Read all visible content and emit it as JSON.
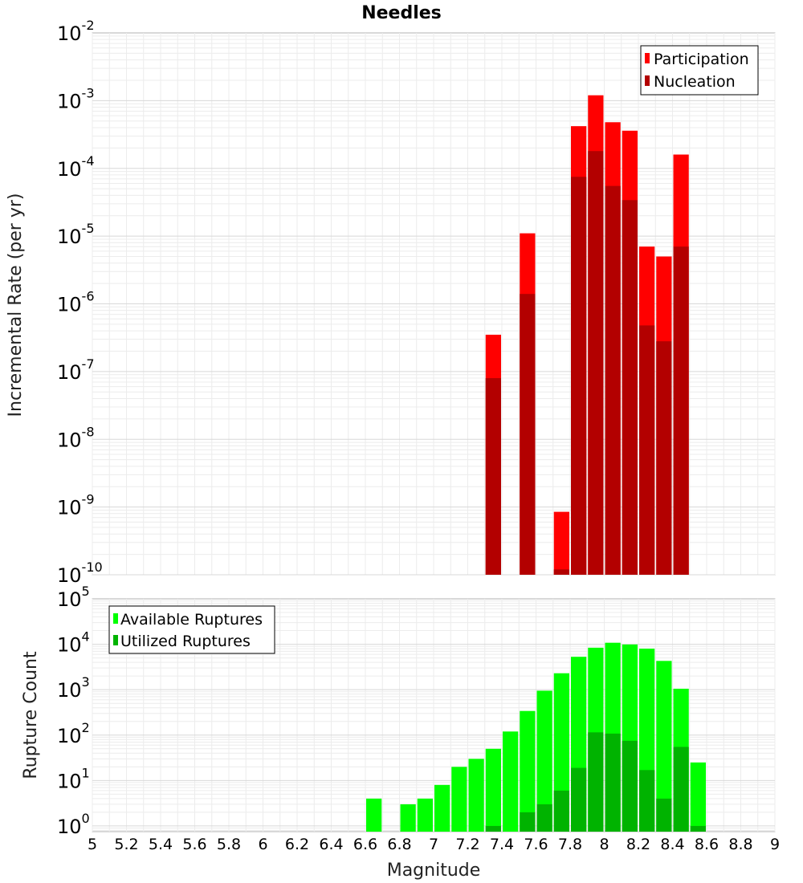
{
  "chart_data": [
    {
      "type": "bar",
      "title": "Needles",
      "ylabel": "Incremental Rate (per yr)",
      "yscale": "log",
      "ylim": [
        1e-10,
        0.01
      ],
      "y_tick_exponents": [
        -10,
        -9,
        -8,
        -7,
        -6,
        -5,
        -4,
        -3,
        -2
      ],
      "legend": {
        "placement": "top-right"
      },
      "bin_width": 0.1,
      "series": [
        {
          "name": "Participation",
          "color": "#ff0000",
          "points": [
            {
              "x": 7.35,
              "y": 3.5e-07
            },
            {
              "x": 7.55,
              "y": 1.1e-05
            },
            {
              "x": 7.75,
              "y": 8.5e-10
            },
            {
              "x": 7.85,
              "y": 0.00042
            },
            {
              "x": 7.95,
              "y": 0.0012
            },
            {
              "x": 8.05,
              "y": 0.00048
            },
            {
              "x": 8.15,
              "y": 0.00036
            },
            {
              "x": 8.25,
              "y": 7e-06
            },
            {
              "x": 8.35,
              "y": 5e-06
            },
            {
              "x": 8.45,
              "y": 0.00016
            }
          ]
        },
        {
          "name": "Nucleation",
          "color": "#b30000",
          "points": [
            {
              "x": 7.35,
              "y": 8e-08
            },
            {
              "x": 7.55,
              "y": 1.4e-06
            },
            {
              "x": 7.75,
              "y": 1.2e-10
            },
            {
              "x": 7.85,
              "y": 7.5e-05
            },
            {
              "x": 7.95,
              "y": 0.00018
            },
            {
              "x": 8.05,
              "y": 5.5e-05
            },
            {
              "x": 8.15,
              "y": 3.4e-05
            },
            {
              "x": 8.25,
              "y": 4.8e-07
            },
            {
              "x": 8.35,
              "y": 2.8e-07
            },
            {
              "x": 8.45,
              "y": 7e-06
            }
          ]
        }
      ]
    },
    {
      "type": "bar",
      "xlabel": "Magnitude",
      "ylabel": "Rupture Count",
      "yscale": "log",
      "ylim": [
        0.75,
        100000.0
      ],
      "xlim": [
        5,
        9
      ],
      "x_ticks": [
        "5",
        "5.2",
        "5.4",
        "5.6",
        "5.8",
        "6",
        "6.2",
        "6.4",
        "6.6",
        "6.8",
        "7",
        "7.2",
        "7.4",
        "7.6",
        "7.8",
        "8",
        "8.2",
        "8.4",
        "8.6",
        "8.8",
        "9"
      ],
      "y_tick_exponents": [
        0,
        1,
        2,
        3,
        4,
        5
      ],
      "legend": {
        "placement": "top-left"
      },
      "bin_width": 0.1,
      "series": [
        {
          "name": "Available Ruptures",
          "color": "#00ff00",
          "points": [
            {
              "x": 6.65,
              "y": 4
            },
            {
              "x": 6.85,
              "y": 3
            },
            {
              "x": 6.95,
              "y": 4
            },
            {
              "x": 7.05,
              "y": 8
            },
            {
              "x": 7.15,
              "y": 20
            },
            {
              "x": 7.25,
              "y": 30
            },
            {
              "x": 7.35,
              "y": 50
            },
            {
              "x": 7.45,
              "y": 120
            },
            {
              "x": 7.55,
              "y": 340
            },
            {
              "x": 7.65,
              "y": 950
            },
            {
              "x": 7.75,
              "y": 2300
            },
            {
              "x": 7.85,
              "y": 5300
            },
            {
              "x": 7.95,
              "y": 8400
            },
            {
              "x": 8.05,
              "y": 10800
            },
            {
              "x": 8.15,
              "y": 9900
            },
            {
              "x": 8.25,
              "y": 8000
            },
            {
              "x": 8.35,
              "y": 4300
            },
            {
              "x": 8.45,
              "y": 1050
            },
            {
              "x": 8.55,
              "y": 25
            }
          ]
        },
        {
          "name": "Utilized Ruptures",
          "color": "#00b300",
          "points": [
            {
              "x": 7.35,
              "y": 1
            },
            {
              "x": 7.55,
              "y": 2
            },
            {
              "x": 7.65,
              "y": 3
            },
            {
              "x": 7.75,
              "y": 6
            },
            {
              "x": 7.85,
              "y": 19
            },
            {
              "x": 7.95,
              "y": 115
            },
            {
              "x": 8.05,
              "y": 108
            },
            {
              "x": 8.15,
              "y": 75
            },
            {
              "x": 8.25,
              "y": 17
            },
            {
              "x": 8.35,
              "y": 4
            },
            {
              "x": 8.45,
              "y": 55
            },
            {
              "x": 8.55,
              "y": 1
            }
          ]
        }
      ]
    }
  ]
}
